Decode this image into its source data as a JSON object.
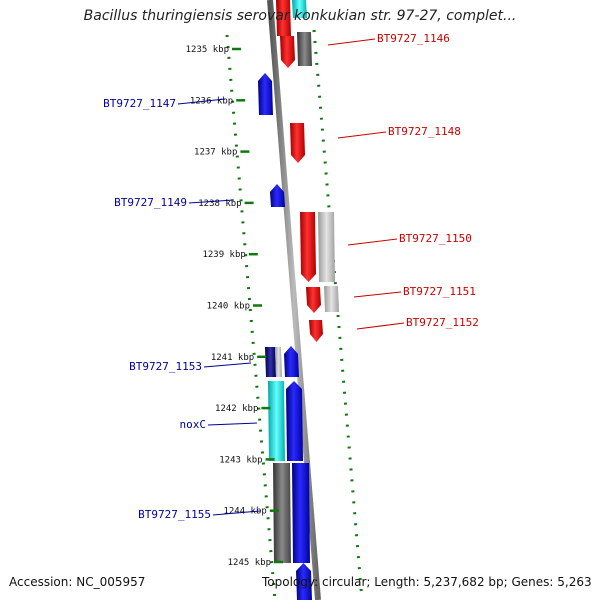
{
  "title": "Bacillus thuringiensis serovar konkukian str. 97-27, complet...",
  "footer": {
    "accession": "Accession: NC_005957",
    "topology": "Topology: circular; Length: 5,237,682 bp; Genes: 5,263"
  },
  "ticks": [
    {
      "label": "1235 kbp",
      "kbp": 1235
    },
    {
      "label": "1236 kbp",
      "kbp": 1236
    },
    {
      "label": "1237 kbp",
      "kbp": 1237
    },
    {
      "label": "1238 kbp",
      "kbp": 1238
    },
    {
      "label": "1239 kbp",
      "kbp": 1239
    },
    {
      "label": "1240 kbp",
      "kbp": 1240
    },
    {
      "label": "1241 kbp",
      "kbp": 1241
    },
    {
      "label": "1242 kbp",
      "kbp": 1242
    },
    {
      "label": "1243 kbp",
      "kbp": 1243
    },
    {
      "label": "1244 kbp",
      "kbp": 1244
    },
    {
      "label": "1245 kbp",
      "kbp": 1245
    }
  ],
  "genes": [
    {
      "label": "BT9727_1146",
      "strand": "forward"
    },
    {
      "label": "BT9727_1147",
      "strand": "reverse"
    },
    {
      "label": "BT9727_1148",
      "strand": "forward"
    },
    {
      "label": "BT9727_1149",
      "strand": "reverse"
    },
    {
      "label": "BT9727_1150",
      "strand": "forward"
    },
    {
      "label": "BT9727_1151",
      "strand": "forward"
    },
    {
      "label": "BT9727_1152",
      "strand": "forward"
    },
    {
      "label": "BT9727_1153",
      "strand": "reverse"
    },
    {
      "label": "noxC",
      "strand": "reverse"
    },
    {
      "label": "BT9727_1155",
      "strand": "reverse"
    }
  ],
  "colors": {
    "forward_cds": "#ee1111",
    "reverse_cds": "#1111dd",
    "forward_label": "#cc0000",
    "reverse_label": "#000099",
    "tick": "#117711",
    "backbone": "#888888",
    "gray_feature": "#666666",
    "light_feature": "#bbbbbb",
    "cyan_feature": "#22dddd"
  }
}
